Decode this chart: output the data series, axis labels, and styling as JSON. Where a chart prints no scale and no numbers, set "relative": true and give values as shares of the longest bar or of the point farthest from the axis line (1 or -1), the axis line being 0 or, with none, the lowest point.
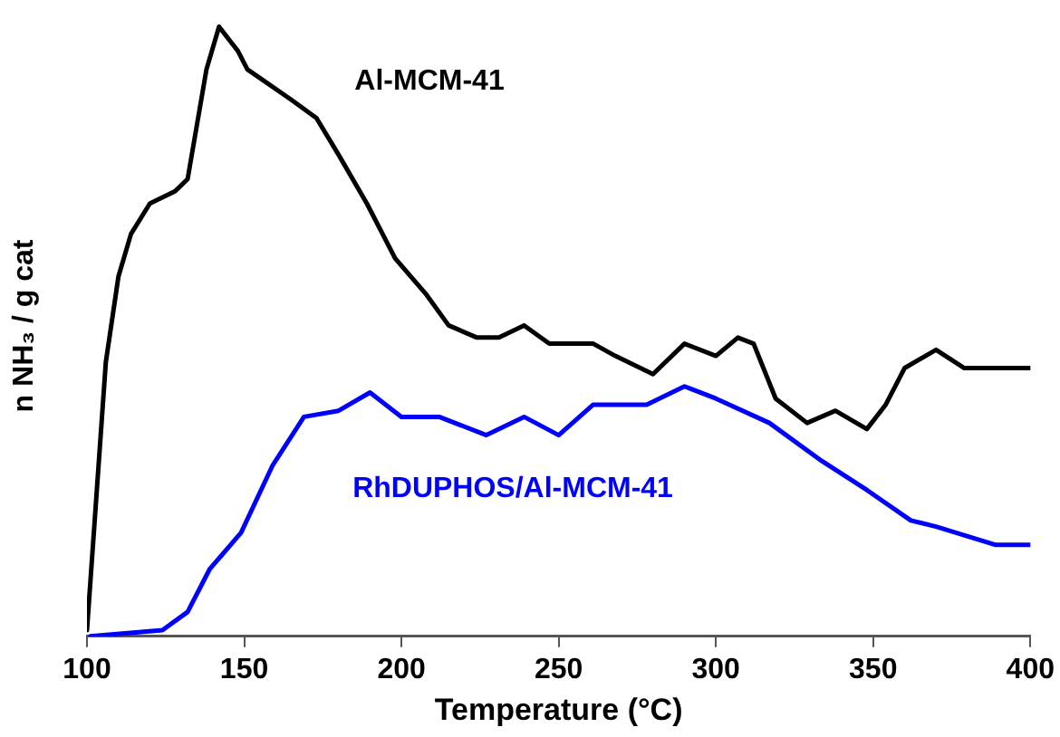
{
  "chart_data": {
    "type": "line",
    "relative": true,
    "xlabel": "Temperature (°C)",
    "ylabel": "n NH₃ / g cat",
    "xlim": [
      100,
      400
    ],
    "xticks": [
      100,
      150,
      200,
      250,
      300,
      350,
      400
    ],
    "grid": false,
    "legend": false,
    "marker": "none",
    "series": [
      {
        "name": "Al-MCM-41",
        "color": "#000000",
        "x": [
          100,
          106,
          110,
          114,
          120,
          128,
          132,
          138,
          142,
          148,
          151,
          165,
          173,
          180,
          189,
          198,
          208,
          215,
          224,
          231,
          239,
          247,
          251,
          261,
          268,
          280,
          290,
          300,
          307,
          312,
          319,
          329,
          338,
          348,
          354,
          360,
          370,
          379,
          391,
          400
        ],
        "values": [
          0.01,
          0.45,
          0.59,
          0.66,
          0.71,
          0.73,
          0.75,
          0.93,
          1.0,
          0.96,
          0.93,
          0.88,
          0.85,
          0.79,
          0.71,
          0.62,
          0.56,
          0.51,
          0.49,
          0.49,
          0.51,
          0.48,
          0.48,
          0.48,
          0.46,
          0.43,
          0.48,
          0.46,
          0.49,
          0.48,
          0.39,
          0.35,
          0.37,
          0.34,
          0.38,
          0.44,
          0.47,
          0.44,
          0.44,
          0.44
        ]
      },
      {
        "name": "RhDUPHOS/Al-MCM-41",
        "color": "#0000ff",
        "x": [
          101,
          124,
          132,
          139,
          149,
          159,
          169,
          180,
          190,
          200,
          212,
          227,
          239,
          250,
          261,
          278,
          290,
          300,
          317,
          333,
          348,
          362,
          370,
          389,
          400
        ],
        "values": [
          0.0,
          0.01,
          0.04,
          0.11,
          0.17,
          0.28,
          0.36,
          0.37,
          0.4,
          0.36,
          0.36,
          0.33,
          0.36,
          0.33,
          0.38,
          0.38,
          0.41,
          0.39,
          0.35,
          0.29,
          0.24,
          0.19,
          0.18,
          0.15,
          0.15
        ]
      }
    ]
  }
}
